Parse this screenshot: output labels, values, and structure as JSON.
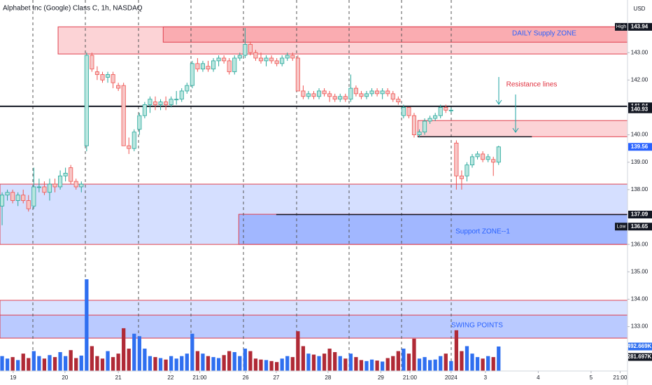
{
  "chart_data": {
    "type": "candlestick",
    "title": "Alphabet Inc (Google) Class C, 1h, NASDAQ",
    "currency": "USD",
    "xlim": [
      -0.4,
      118.4
    ],
    "xticks": [
      {
        "value": 2.1,
        "label": "19"
      },
      {
        "value": 11.9,
        "label": "20"
      },
      {
        "value": 22.0,
        "label": "21"
      },
      {
        "value": 31.9,
        "label": "22"
      },
      {
        "value": 37.4,
        "label": "21:00"
      },
      {
        "value": 46.1,
        "label": "26"
      },
      {
        "value": 51.9,
        "label": "27"
      },
      {
        "value": 61.7,
        "label": "28"
      },
      {
        "value": 71.7,
        "label": "29"
      },
      {
        "value": 77.2,
        "label": "21:00"
      },
      {
        "value": 85.0,
        "label": "2024"
      },
      {
        "value": 91.5,
        "label": "3"
      },
      {
        "value": 101.5,
        "label": "4"
      },
      {
        "value": 111.5,
        "label": "5"
      },
      {
        "value": 117.0,
        "label": "21:00"
      }
    ],
    "ylim": [
      131.38,
      144.92
    ],
    "yticks": [
      {
        "value": 133,
        "label": "133.00"
      },
      {
        "value": 134,
        "label": "134.00"
      },
      {
        "value": 135,
        "label": "135.00"
      },
      {
        "value": 136,
        "label": "136.00"
      },
      {
        "value": 137,
        "label": "137.00"
      },
      {
        "value": 138,
        "label": "138.00"
      },
      {
        "value": 139,
        "label": "139.00"
      },
      {
        "value": 140,
        "label": "140.00"
      },
      {
        "value": 141,
        "label": "141.00"
      },
      {
        "value": 142,
        "label": "142.00"
      },
      {
        "value": 143,
        "label": "143.00"
      }
    ],
    "up_color": "#26a69a",
    "up_fill": "#b9e6df",
    "down_color": "#ef5350",
    "down_fill": "#f7c6c6",
    "up_volume_color": "#2f6ff0",
    "down_volume_color": "#b02a36",
    "ohlc": [
      [
        137.4,
        137.9,
        136.7,
        137.8
      ],
      [
        137.8,
        138.0,
        137.6,
        137.9
      ],
      [
        137.9,
        138.0,
        137.5,
        137.6
      ],
      [
        137.6,
        137.9,
        137.4,
        137.8
      ],
      [
        137.8,
        138.0,
        137.5,
        137.6
      ],
      [
        137.6,
        137.8,
        137.2,
        137.3
      ],
      [
        137.4,
        138.8,
        137.3,
        138.1
      ],
      [
        138.1,
        138.4,
        137.9,
        138.1
      ],
      [
        138.1,
        138.3,
        137.8,
        137.9
      ],
      [
        137.9,
        138.4,
        137.6,
        138.2
      ],
      [
        138.2,
        138.4,
        137.9,
        138.1
      ],
      [
        138.1,
        138.7,
        138.0,
        138.5
      ],
      [
        138.5,
        138.8,
        138.3,
        138.6
      ],
      [
        138.8,
        138.9,
        138.2,
        138.3
      ],
      [
        138.3,
        138.4,
        138.0,
        138.1
      ],
      [
        138.1,
        138.3,
        137.9,
        138.2
      ],
      [
        139.6,
        143.0,
        139.4,
        142.9
      ],
      [
        142.9,
        143.0,
        142.3,
        142.4
      ],
      [
        142.3,
        142.5,
        142.0,
        142.2
      ],
      [
        142.2,
        142.3,
        141.9,
        142.0
      ],
      [
        142.1,
        142.3,
        141.9,
        142.2
      ],
      [
        142.2,
        142.3,
        141.7,
        141.9
      ],
      [
        141.8,
        141.9,
        141.6,
        141.7
      ],
      [
        141.8,
        141.9,
        139.6,
        139.6
      ],
      [
        139.6,
        139.9,
        139.3,
        139.5
      ],
      [
        139.5,
        140.2,
        139.4,
        140.1
      ],
      [
        140.2,
        140.8,
        140.0,
        140.7
      ],
      [
        140.7,
        141.2,
        140.6,
        141.1
      ],
      [
        141.1,
        141.4,
        140.8,
        141.3
      ],
      [
        141.2,
        141.4,
        140.9,
        141.1
      ],
      [
        141.1,
        141.3,
        140.9,
        141.2
      ],
      [
        141.2,
        141.4,
        140.9,
        141.1
      ],
      [
        141.1,
        141.4,
        141.0,
        141.3
      ],
      [
        141.3,
        141.6,
        141.1,
        141.3
      ],
      [
        141.3,
        141.7,
        141.2,
        141.6
      ],
      [
        141.6,
        141.9,
        141.5,
        141.8
      ],
      [
        141.8,
        142.7,
        141.7,
        142.6
      ],
      [
        142.6,
        142.8,
        142.3,
        142.4
      ],
      [
        142.4,
        142.7,
        142.3,
        142.6
      ],
      [
        142.5,
        142.7,
        142.3,
        142.4
      ],
      [
        142.4,
        142.8,
        142.3,
        142.7
      ],
      [
        142.7,
        142.9,
        142.5,
        142.8
      ],
      [
        142.8,
        142.9,
        142.6,
        142.7
      ],
      [
        142.7,
        142.8,
        142.2,
        142.3
      ],
      [
        142.3,
        142.9,
        142.2,
        142.8
      ],
      [
        142.8,
        143.0,
        142.7,
        142.9
      ],
      [
        142.9,
        143.9,
        142.8,
        143.3
      ],
      [
        143.3,
        143.4,
        142.9,
        143.0
      ],
      [
        143.0,
        143.1,
        142.7,
        142.8
      ],
      [
        142.8,
        143.0,
        142.6,
        142.7
      ],
      [
        142.7,
        142.9,
        142.5,
        142.8
      ],
      [
        142.8,
        142.9,
        142.6,
        142.7
      ],
      [
        142.7,
        142.8,
        142.5,
        142.6
      ],
      [
        142.6,
        142.9,
        142.5,
        142.8
      ],
      [
        142.8,
        143.0,
        142.7,
        142.9
      ],
      [
        142.9,
        143.0,
        142.7,
        142.8
      ],
      [
        142.8,
        142.9,
        141.6,
        141.6
      ],
      [
        141.6,
        141.8,
        141.3,
        141.4
      ],
      [
        141.4,
        141.6,
        141.3,
        141.5
      ],
      [
        141.5,
        141.6,
        141.3,
        141.4
      ],
      [
        141.4,
        141.7,
        141.3,
        141.6
      ],
      [
        141.6,
        141.7,
        141.4,
        141.5
      ],
      [
        141.5,
        141.6,
        141.2,
        141.4
      ],
      [
        141.4,
        141.5,
        141.2,
        141.3
      ],
      [
        141.3,
        141.5,
        141.2,
        141.4
      ],
      [
        141.4,
        141.5,
        141.2,
        141.3
      ],
      [
        141.3,
        142.2,
        141.2,
        141.7
      ],
      [
        141.7,
        141.8,
        141.4,
        141.5
      ],
      [
        141.5,
        141.6,
        141.3,
        141.4
      ],
      [
        141.4,
        141.6,
        141.3,
        141.5
      ],
      [
        141.5,
        141.7,
        141.4,
        141.6
      ],
      [
        141.6,
        141.7,
        141.4,
        141.5
      ],
      [
        141.5,
        141.7,
        141.3,
        141.6
      ],
      [
        141.6,
        141.7,
        141.4,
        141.5
      ],
      [
        141.5,
        141.6,
        141.2,
        141.3
      ],
      [
        141.3,
        141.4,
        141.1,
        141.2
      ],
      [
        140.7,
        141.1,
        140.6,
        141.0
      ],
      [
        141.0,
        141.0,
        140.6,
        140.7
      ],
      [
        140.7,
        140.8,
        139.9,
        140.0
      ],
      [
        140.0,
        140.2,
        139.9,
        140.1
      ],
      [
        140.1,
        140.6,
        140.0,
        140.5
      ],
      [
        140.5,
        140.7,
        140.4,
        140.6
      ],
      [
        140.6,
        140.8,
        140.5,
        140.7
      ],
      [
        140.7,
        141.1,
        140.6,
        141.0
      ],
      [
        141.0,
        141.1,
        140.8,
        140.9
      ],
      [
        140.9,
        141.0,
        140.8,
        140.9
      ],
      [
        139.7,
        139.8,
        138.0,
        138.5
      ],
      [
        138.5,
        138.7,
        138.0,
        138.4
      ],
      [
        138.5,
        139.0,
        138.3,
        138.9
      ],
      [
        138.9,
        139.3,
        138.8,
        139.2
      ],
      [
        139.2,
        139.4,
        139.1,
        139.3
      ],
      [
        139.3,
        139.4,
        139.0,
        139.1
      ],
      [
        139.1,
        139.3,
        139.0,
        139.2
      ],
      [
        139.1,
        139.2,
        138.5,
        139.0
      ],
      [
        139.0,
        139.6,
        138.9,
        139.56
      ]
    ],
    "vlim": [
      0,
      7462000
    ],
    "volume": [
      300000,
      250000,
      280000,
      220000,
      350000,
      260000,
      400000,
      300000,
      250000,
      320000,
      280000,
      380000,
      300000,
      420000,
      260000,
      310000,
      1845000,
      500000,
      300000,
      250000,
      400000,
      280000,
      350000,
      860000,
      450000,
      750000,
      700000,
      450000,
      300000,
      280000,
      260000,
      230000,
      300000,
      250000,
      300000,
      350000,
      750000,
      400000,
      350000,
      300000,
      280000,
      260000,
      320000,
      400000,
      380000,
      300000,
      450000,
      400000,
      250000,
      230000,
      220000,
      200000,
      180000,
      250000,
      300000,
      280000,
      800000,
      500000,
      350000,
      330000,
      300000,
      350000,
      450000,
      380000,
      300000,
      250000,
      350000,
      280000,
      220000,
      200000,
      230000,
      210000,
      190000,
      260000,
      300000,
      400000,
      450000,
      350000,
      650000,
      250000,
      280000,
      220000,
      230000,
      300000,
      350000,
      200000,
      820000,
      400000,
      500000,
      350000,
      280000,
      250000,
      300000,
      280000,
      492669
    ],
    "zones": [
      {
        "from": 10.6,
        "top": 143.94,
        "bottom": 142.95,
        "fill": "rgba(242,54,69,0.22)",
        "stroke": "#e0404e"
      },
      {
        "from": 30.5,
        "top": 143.94,
        "bottom": 143.38,
        "fill": "rgba(242,54,69,0.25)",
        "stroke": "#e0404e"
      },
      {
        "from": -0.4,
        "top": 138.2,
        "bottom": 136.0,
        "fill": "rgba(66,110,255,0.22)",
        "stroke": "#e0404e"
      },
      {
        "from": 44.8,
        "top": 137.1,
        "bottom": 136.0,
        "fill": "rgba(66,110,255,0.35)",
        "stroke": "#e0404e"
      },
      {
        "from": 78.7,
        "top": 140.52,
        "bottom": 139.93,
        "fill": "rgba(242,54,69,0.22)",
        "stroke": "#e0404e"
      },
      {
        "from": -0.4,
        "top": 133.96,
        "bottom": 132.58,
        "fill": "rgba(66,110,255,0.2)",
        "stroke": "#e0404e"
      },
      {
        "from": -0.4,
        "top": 133.42,
        "bottom": 132.58,
        "fill": "rgba(66,110,255,0.2)",
        "stroke": "#e0404e"
      }
    ],
    "levels": [
      {
        "value": 141.04,
        "from": -0.4,
        "width": 2
      },
      {
        "value": 139.93,
        "from": 78.7,
        "to": 100.3,
        "width": 1.5
      },
      {
        "value": 137.09,
        "from": 51.9,
        "width": 1.5
      }
    ],
    "price_tags": [
      {
        "value": 143.94,
        "label": "143.94",
        "name": "High",
        "color": "#131722"
      },
      {
        "value": 141.04,
        "label": "141.04",
        "color": "#131722"
      },
      {
        "value": 140.93,
        "label": "140.93",
        "color": "#131722"
      },
      {
        "value": 139.56,
        "label": "139.56",
        "color": "#2962ff"
      },
      {
        "value": 137.09,
        "label": "137.09",
        "color": "#131722"
      },
      {
        "value": 136.65,
        "label": "136.65",
        "name": "Low",
        "color": "#131722"
      }
    ],
    "volume_tags": [
      {
        "value": 492669,
        "label": "492.669K",
        "color": "#2f6ff0"
      },
      {
        "value": 281697,
        "label": "281.697K",
        "color": "#131722"
      }
    ],
    "annotations": [
      "DAILY Supply  ZONE",
      "Resistance lines",
      "Support  ZONE--1",
      "SWING POINTS"
    ]
  }
}
